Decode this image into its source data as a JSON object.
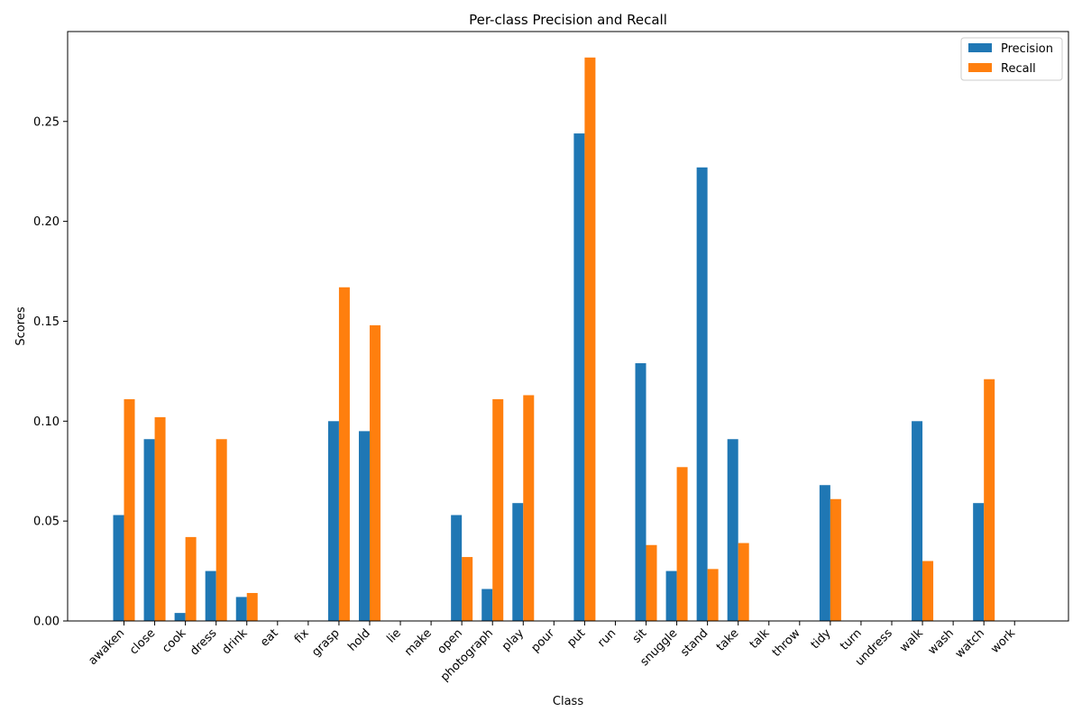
{
  "chart_data": {
    "type": "bar",
    "title": "Per-class Precision and Recall",
    "xlabel": "Class",
    "ylabel": "Scores",
    "ylim": [
      0,
      0.295
    ],
    "yticks": [
      "0.00",
      "0.05",
      "0.10",
      "0.15",
      "0.20",
      "0.25"
    ],
    "legend_position": "top-right",
    "categories": [
      "awaken",
      "close",
      "cook",
      "dress",
      "drink",
      "eat",
      "fix",
      "grasp",
      "hold",
      "lie",
      "make",
      "open",
      "photograph",
      "play",
      "pour",
      "put",
      "run",
      "sit",
      "snuggle",
      "stand",
      "take",
      "talk",
      "throw",
      "tidy",
      "turn",
      "undress",
      "walk",
      "wash",
      "watch",
      "work"
    ],
    "series": [
      {
        "name": "Precision",
        "color": "#1f77b4",
        "values": [
          0.053,
          0.091,
          0.004,
          0.025,
          0.012,
          0,
          0,
          0.1,
          0.095,
          0,
          0,
          0.053,
          0.016,
          0.059,
          0,
          0.244,
          0,
          0.129,
          0.025,
          0.227,
          0.091,
          0,
          0,
          0.068,
          0,
          0,
          0.1,
          0,
          0.059,
          0
        ]
      },
      {
        "name": "Recall",
        "color": "#ff7f0e",
        "values": [
          0.111,
          0.102,
          0.042,
          0.091,
          0.014,
          0,
          0,
          0.167,
          0.148,
          0,
          0,
          0.032,
          0.111,
          0.113,
          0,
          0.282,
          0,
          0.038,
          0.077,
          0.026,
          0.039,
          0,
          0,
          0.061,
          0,
          0,
          0.03,
          0,
          0.121,
          0
        ]
      }
    ]
  }
}
